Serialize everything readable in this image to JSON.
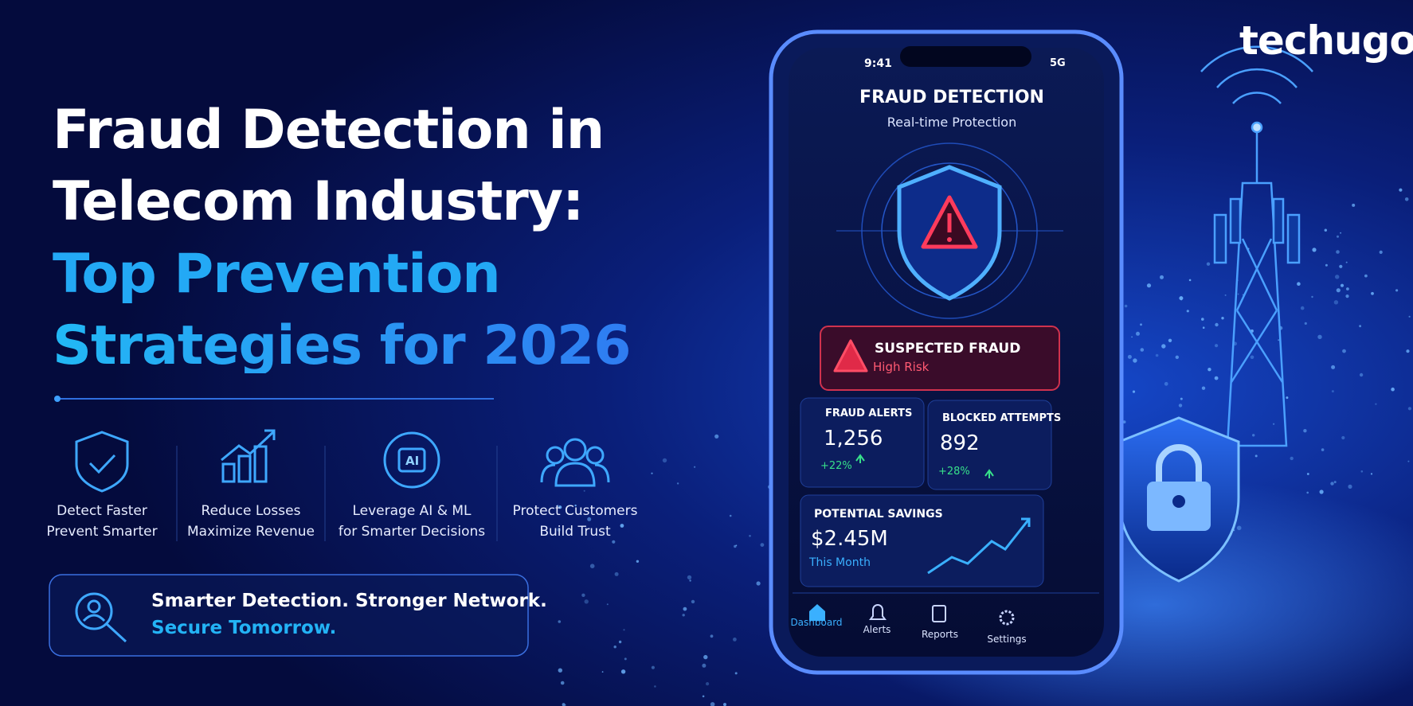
{
  "brand": "techugo",
  "headline": {
    "lines": [
      "Fraud Detection in",
      "Telecom Industry:"
    ],
    "highlight": [
      "Top Prevention",
      "Strategies for 2026"
    ]
  },
  "features": [
    {
      "lines": [
        "Detect Faster",
        "Prevent Smarter"
      ]
    },
    {
      "lines": [
        "Reduce Losses",
        "Maximize Revenue"
      ]
    },
    {
      "lines": [
        "Leverage AI & ML",
        "for Smarter Decisions"
      ],
      "icon_label": "AI"
    },
    {
      "lines": [
        "Protect Customers",
        "Build Trust"
      ]
    }
  ],
  "tagline": {
    "line1": "Smarter Detection. Stronger Network.",
    "line2": "Secure Tomorrow."
  },
  "phone": {
    "status": {
      "time": "9:41",
      "network": "5G"
    },
    "title": "FRAUD DETECTION",
    "subtitle": "Real-time Protection",
    "alert": {
      "title": "SUSPECTED FRAUD",
      "level": "High Risk"
    },
    "stats": [
      {
        "label": "FRAUD ALERTS",
        "value": "1,256",
        "change": "+22%"
      },
      {
        "label": "BLOCKED ATTEMPTS",
        "value": "892",
        "change": "+28%"
      }
    ],
    "savings": {
      "label": "POTENTIAL SAVINGS",
      "value": "$2.45M",
      "period": "This Month"
    },
    "nav": [
      "Dashboard",
      "Alerts",
      "Reports",
      "Settings"
    ]
  }
}
